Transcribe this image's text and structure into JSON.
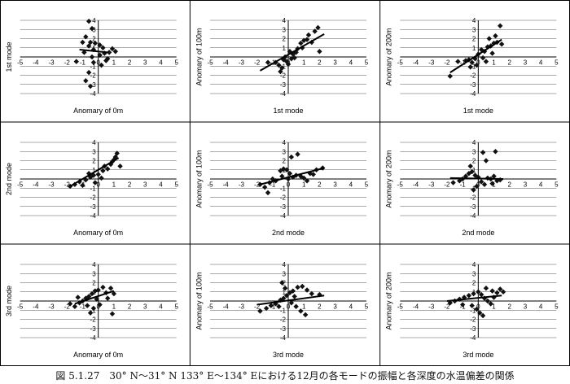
{
  "caption": "図 5.1.27　30° N～31° N 133° E～134° Eにおける12月の各モードの振幅と各深度の水温偏差の関係",
  "layout": {
    "rows": 3,
    "cols": 3
  },
  "axes_common": {
    "xlim": [
      -5,
      5
    ],
    "ylim": [
      -4,
      4
    ],
    "xticks": [
      "-5",
      "-4",
      "-3",
      "-2",
      "-1",
      "0",
      "1",
      "2",
      "3",
      "4",
      "5"
    ],
    "yticks": [
      "4",
      "3",
      "2",
      "1",
      "-1",
      "-2",
      "-3",
      "-4"
    ],
    "grid": "horizontal"
  },
  "chart_data": [
    {
      "type": "scatter",
      "xlabel": "Anomary of 0m",
      "ylabel": "1st mode",
      "points": [
        [
          -0.6,
          3.9
        ],
        [
          -0.4,
          3.1
        ],
        [
          -0.8,
          2.2
        ],
        [
          -0.5,
          1.6
        ],
        [
          -1.0,
          1.6
        ],
        [
          -0.2,
          1.5
        ],
        [
          0.1,
          1.3
        ],
        [
          -0.6,
          1.2
        ],
        [
          0.3,
          1.0
        ],
        [
          -0.3,
          0.8
        ],
        [
          -0.9,
          0.5
        ],
        [
          0.4,
          0.4
        ],
        [
          0.7,
          0.5
        ],
        [
          0.1,
          0.2
        ],
        [
          -0.4,
          0.0
        ],
        [
          0.6,
          -0.2
        ],
        [
          -1.4,
          -0.5
        ],
        [
          -0.3,
          -0.6
        ],
        [
          0.2,
          -0.9
        ],
        [
          -0.6,
          -1.7
        ],
        [
          -0.8,
          -2.6
        ],
        [
          -0.5,
          -3.2
        ],
        [
          0.9,
          0.9
        ],
        [
          1.1,
          0.6
        ],
        [
          0.5,
          -0.4
        ]
      ],
      "regression": {
        "x": [
          -1.2,
          0.6
        ],
        "y": [
          0.8,
          0.5
        ]
      }
    },
    {
      "type": "scatter",
      "xlabel": "1st mode",
      "ylabel": "Anomary of 100m",
      "points": [
        [
          -0.8,
          -0.6
        ],
        [
          -0.6,
          -0.9
        ],
        [
          -0.4,
          -1.2
        ],
        [
          -0.5,
          -1.6
        ],
        [
          -0.3,
          -0.3
        ],
        [
          0.0,
          -0.8
        ],
        [
          0.2,
          -0.2
        ],
        [
          0.3,
          0.3
        ],
        [
          0.5,
          0.5
        ],
        [
          0.6,
          0.9
        ],
        [
          0.8,
          1.5
        ],
        [
          1.0,
          1.8
        ],
        [
          1.2,
          1.9
        ],
        [
          1.3,
          2.4
        ],
        [
          1.9,
          3.2
        ],
        [
          1.7,
          2.8
        ],
        [
          -0.2,
          0.0
        ],
        [
          0.4,
          -0.1
        ],
        [
          -0.1,
          -0.5
        ],
        [
          -1.3,
          -0.6
        ],
        [
          0.1,
          0.6
        ],
        [
          0.9,
          1.0
        ],
        [
          1.5,
          1.6
        ],
        [
          2.0,
          0.6
        ]
      ],
      "regression": {
        "x": [
          -1.8,
          2.3
        ],
        "y": [
          -1.5,
          2.5
        ]
      }
    },
    {
      "type": "scatter",
      "xlabel": "1st mode",
      "ylabel": "Anomary of 200m",
      "points": [
        [
          -1.8,
          -2.1
        ],
        [
          -1.3,
          -0.5
        ],
        [
          -0.8,
          -0.4
        ],
        [
          -0.6,
          -0.3
        ],
        [
          -0.4,
          -0.6
        ],
        [
          -0.2,
          -0.2
        ],
        [
          0.0,
          0.3
        ],
        [
          0.2,
          0.8
        ],
        [
          0.4,
          0.6
        ],
        [
          0.6,
          1.1
        ],
        [
          0.8,
          1.2
        ],
        [
          1.0,
          1.5
        ],
        [
          1.2,
          1.6
        ],
        [
          0.9,
          0.4
        ],
        [
          0.5,
          -0.5
        ],
        [
          0.3,
          -0.1
        ],
        [
          -0.1,
          -0.9
        ],
        [
          1.4,
          3.4
        ],
        [
          1.1,
          2.3
        ],
        [
          1.5,
          1.4
        ],
        [
          0.7,
          2.0
        ],
        [
          -0.5,
          -1.1
        ]
      ],
      "regression": {
        "x": [
          -1.8,
          1.5
        ],
        "y": [
          -1.7,
          1.9
        ]
      }
    },
    {
      "type": "scatter",
      "xlabel": "Anomary of 0m",
      "ylabel": "2nd mode",
      "points": [
        [
          -1.8,
          -0.8
        ],
        [
          -1.5,
          -0.6
        ],
        [
          -1.2,
          -0.3
        ],
        [
          -0.8,
          -0.1
        ],
        [
          -0.5,
          0.2
        ],
        [
          -0.3,
          0.4
        ],
        [
          0.0,
          0.5
        ],
        [
          0.3,
          0.9
        ],
        [
          0.6,
          1.1
        ],
        [
          0.8,
          1.6
        ],
        [
          1.0,
          2.1
        ],
        [
          1.2,
          2.8
        ],
        [
          1.1,
          2.4
        ],
        [
          0.9,
          1.9
        ],
        [
          -0.6,
          0.6
        ],
        [
          -0.2,
          -0.4
        ],
        [
          0.2,
          0.1
        ],
        [
          -1.0,
          -0.7
        ],
        [
          1.4,
          1.4
        ],
        [
          0.4,
          1.4
        ]
      ],
      "regression": {
        "x": [
          -1.8,
          1.3
        ],
        "y": [
          -0.8,
          2.3
        ]
      }
    },
    {
      "type": "scatter",
      "xlabel": "2nd mode",
      "ylabel": "Anomary of 100m",
      "points": [
        [
          -1.8,
          -0.6
        ],
        [
          -1.5,
          -0.9
        ],
        [
          -1.2,
          -0.4
        ],
        [
          -1.0,
          0.0
        ],
        [
          -0.8,
          -0.2
        ],
        [
          -0.5,
          0.9
        ],
        [
          -0.3,
          1.1
        ],
        [
          -0.1,
          1.0
        ],
        [
          0.1,
          0.6
        ],
        [
          0.3,
          0.2
        ],
        [
          0.5,
          0.4
        ],
        [
          0.8,
          0.3
        ],
        [
          1.0,
          0.1
        ],
        [
          1.2,
          -0.2
        ],
        [
          1.4,
          0.6
        ],
        [
          1.6,
          0.5
        ],
        [
          0.2,
          2.4
        ],
        [
          0.6,
          2.7
        ],
        [
          -0.4,
          0.3
        ],
        [
          -1.3,
          -1.5
        ],
        [
          1.8,
          1.0
        ],
        [
          2.2,
          1.2
        ],
        [
          0.0,
          0.0
        ]
      ],
      "regression": {
        "x": [
          -1.8,
          2.3
        ],
        "y": [
          -0.6,
          1.2
        ]
      }
    },
    {
      "type": "scatter",
      "xlabel": "2nd mode",
      "ylabel": "Anomary of 200m",
      "points": [
        [
          -1.6,
          -0.4
        ],
        [
          -1.2,
          -0.2
        ],
        [
          -1.0,
          0.0
        ],
        [
          -0.8,
          0.3
        ],
        [
          -0.6,
          0.6
        ],
        [
          -0.4,
          0.8
        ],
        [
          -0.2,
          0.4
        ],
        [
          0.0,
          0.2
        ],
        [
          0.2,
          -0.3
        ],
        [
          0.4,
          -0.6
        ],
        [
          0.6,
          0.1
        ],
        [
          0.8,
          0.0
        ],
        [
          1.0,
          0.3
        ],
        [
          1.2,
          -0.2
        ],
        [
          1.4,
          -0.1
        ],
        [
          -0.5,
          1.4
        ],
        [
          0.5,
          2.0
        ],
        [
          0.3,
          2.9
        ],
        [
          1.1,
          3.0
        ],
        [
          -0.1,
          -0.8
        ],
        [
          -0.3,
          -1.2
        ],
        [
          0.9,
          -0.5
        ]
      ],
      "regression": {
        "x": [
          -1.8,
          1.6
        ],
        "y": [
          0.1,
          0.0
        ]
      }
    },
    {
      "type": "scatter",
      "xlabel": "Anomary of 0m",
      "ylabel": "3rd mode",
      "points": [
        [
          -1.8,
          -0.3
        ],
        [
          -1.5,
          -0.6
        ],
        [
          -1.2,
          -0.2
        ],
        [
          -1.0,
          0.0
        ],
        [
          -0.8,
          0.3
        ],
        [
          -0.6,
          0.5
        ],
        [
          -0.4,
          0.8
        ],
        [
          -0.2,
          1.1
        ],
        [
          0.0,
          1.2
        ],
        [
          0.3,
          1.5
        ],
        [
          0.5,
          0.9
        ],
        [
          0.8,
          1.4
        ],
        [
          -0.3,
          -0.8
        ],
        [
          -0.5,
          -1.3
        ],
        [
          0.1,
          -0.4
        ],
        [
          0.6,
          0.3
        ],
        [
          -0.7,
          -0.5
        ],
        [
          1.0,
          0.8
        ],
        [
          0.9,
          -1.4
        ],
        [
          -0.1,
          0.2
        ],
        [
          -1.3,
          0.4
        ]
      ],
      "regression": {
        "x": [
          -1.5,
          1.0
        ],
        "y": [
          -0.3,
          1.1
        ]
      }
    },
    {
      "type": "scatter",
      "xlabel": "3rd mode",
      "ylabel": "Anomary of 100m",
      "points": [
        [
          -1.8,
          -1.1
        ],
        [
          -1.4,
          -0.8
        ],
        [
          -1.1,
          -0.5
        ],
        [
          -0.8,
          -0.3
        ],
        [
          -0.5,
          0.1
        ],
        [
          -0.3,
          0.3
        ],
        [
          -0.1,
          0.6
        ],
        [
          0.1,
          0.9
        ],
        [
          0.3,
          1.1
        ],
        [
          0.6,
          1.5
        ],
        [
          0.9,
          1.6
        ],
        [
          1.2,
          1.2
        ],
        [
          1.5,
          0.8
        ],
        [
          2.0,
          0.7
        ],
        [
          0.2,
          -0.2
        ],
        [
          0.5,
          -0.6
        ],
        [
          0.8,
          -1.1
        ],
        [
          1.1,
          -1.5
        ],
        [
          -0.6,
          -0.6
        ],
        [
          -0.2,
          1.4
        ],
        [
          -0.4,
          2.0
        ],
        [
          0.4,
          0.5
        ]
      ],
      "regression": {
        "x": [
          -2.0,
          2.3
        ],
        "y": [
          -0.4,
          0.6
        ]
      }
    },
    {
      "type": "scatter",
      "xlabel": "3rd mode",
      "ylabel": "Anomary of 200m",
      "points": [
        [
          -1.8,
          -0.2
        ],
        [
          -1.5,
          0.0
        ],
        [
          -1.2,
          0.2
        ],
        [
          -0.9,
          0.4
        ],
        [
          -0.6,
          0.6
        ],
        [
          -0.3,
          0.8
        ],
        [
          0.0,
          1.0
        ],
        [
          0.2,
          0.7
        ],
        [
          0.4,
          0.3
        ],
        [
          0.6,
          0.0
        ],
        [
          0.8,
          -0.3
        ],
        [
          1.0,
          0.4
        ],
        [
          1.2,
          0.9
        ],
        [
          1.4,
          1.3
        ],
        [
          1.6,
          1.0
        ],
        [
          -0.4,
          -0.5
        ],
        [
          -0.1,
          -0.9
        ],
        [
          0.1,
          -1.3
        ],
        [
          0.3,
          -1.6
        ],
        [
          0.5,
          1.4
        ],
        [
          0.9,
          1.1
        ],
        [
          -1.0,
          -0.4
        ]
      ],
      "regression": {
        "x": [
          -2.0,
          1.5
        ],
        "y": [
          0.0,
          0.6
        ]
      }
    }
  ]
}
